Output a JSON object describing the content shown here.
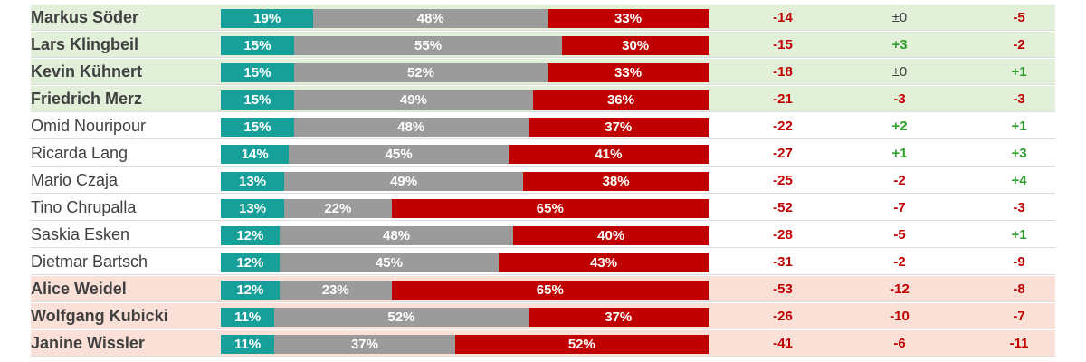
{
  "chart_data": {
    "type": "bar",
    "stacked": true,
    "normalized": true,
    "colors": {
      "positive": "#17a09a",
      "neutral": "#9b9b9b",
      "negative": "#c00000",
      "row_green": "#e2efd9",
      "row_red": "#fbe0d8",
      "change_up": "#2e9e2e",
      "change_down": "#c00000"
    },
    "rows": [
      {
        "name": "Markus Söder",
        "group": "green",
        "positive": 19,
        "neutral": 48,
        "negative": 33,
        "positive_label": "19%",
        "neutral_label": "48%",
        "negative_label": "33%",
        "balance": "-14",
        "change1": "±0",
        "change2": "-5"
      },
      {
        "name": "Lars Klingbeil",
        "group": "green",
        "positive": 15,
        "neutral": 55,
        "negative": 30,
        "positive_label": "15%",
        "neutral_label": "55%",
        "negative_label": "30%",
        "balance": "-15",
        "change1": "+3",
        "change2": "-2"
      },
      {
        "name": "Kevin Kühnert",
        "group": "green",
        "positive": 15,
        "neutral": 52,
        "negative": 33,
        "positive_label": "15%",
        "neutral_label": "52%",
        "negative_label": "33%",
        "balance": "-18",
        "change1": "±0",
        "change2": "+1"
      },
      {
        "name": "Friedrich Merz",
        "group": "green",
        "positive": 15,
        "neutral": 49,
        "negative": 36,
        "positive_label": "15%",
        "neutral_label": "49%",
        "negative_label": "36%",
        "balance": "-21",
        "change1": "-3",
        "change2": "-3"
      },
      {
        "name": "Omid Nouripour",
        "group": "white",
        "positive": 15,
        "neutral": 48,
        "negative": 37,
        "positive_label": "15%",
        "neutral_label": "48%",
        "negative_label": "37%",
        "balance": "-22",
        "change1": "+2",
        "change2": "+1"
      },
      {
        "name": "Ricarda Lang",
        "group": "white",
        "positive": 14,
        "neutral": 45,
        "negative": 41,
        "positive_label": "14%",
        "neutral_label": "45%",
        "negative_label": "41%",
        "balance": "-27",
        "change1": "+1",
        "change2": "+3"
      },
      {
        "name": "Mario Czaja",
        "group": "white",
        "positive": 13,
        "neutral": 49,
        "negative": 38,
        "positive_label": "13%",
        "neutral_label": "49%",
        "negative_label": "38%",
        "balance": "-25",
        "change1": "-2",
        "change2": "+4"
      },
      {
        "name": "Tino Chrupalla",
        "group": "white",
        "positive": 13,
        "neutral": 22,
        "negative": 65,
        "positive_label": "13%",
        "neutral_label": "22%",
        "negative_label": "65%",
        "balance": "-52",
        "change1": "-7",
        "change2": "-3"
      },
      {
        "name": "Saskia Esken",
        "group": "white",
        "positive": 12,
        "neutral": 48,
        "negative": 40,
        "positive_label": "12%",
        "neutral_label": "48%",
        "negative_label": "40%",
        "balance": "-28",
        "change1": "-5",
        "change2": "+1"
      },
      {
        "name": "Dietmar Bartsch",
        "group": "white",
        "positive": 12,
        "neutral": 45,
        "negative": 43,
        "positive_label": "12%",
        "neutral_label": "45%",
        "negative_label": "43%",
        "balance": "-31",
        "change1": "-2",
        "change2": "-9"
      },
      {
        "name": "Alice Weidel",
        "group": "red",
        "positive": 12,
        "neutral": 23,
        "negative": 65,
        "positive_label": "12%",
        "neutral_label": "23%",
        "negative_label": "65%",
        "balance": "-53",
        "change1": "-12",
        "change2": "-8"
      },
      {
        "name": "Wolfgang Kubicki",
        "group": "red",
        "positive": 11,
        "neutral": 52,
        "negative": 37,
        "positive_label": "11%",
        "neutral_label": "52%",
        "negative_label": "37%",
        "balance": "-26",
        "change1": "-10",
        "change2": "-7"
      },
      {
        "name": "Janine Wissler",
        "group": "red",
        "positive": 11,
        "neutral": 37,
        "negative": 52,
        "positive_label": "11%",
        "neutral_label": "37%",
        "negative_label": "52%",
        "balance": "-41",
        "change1": "-6",
        "change2": "-11"
      }
    ]
  }
}
